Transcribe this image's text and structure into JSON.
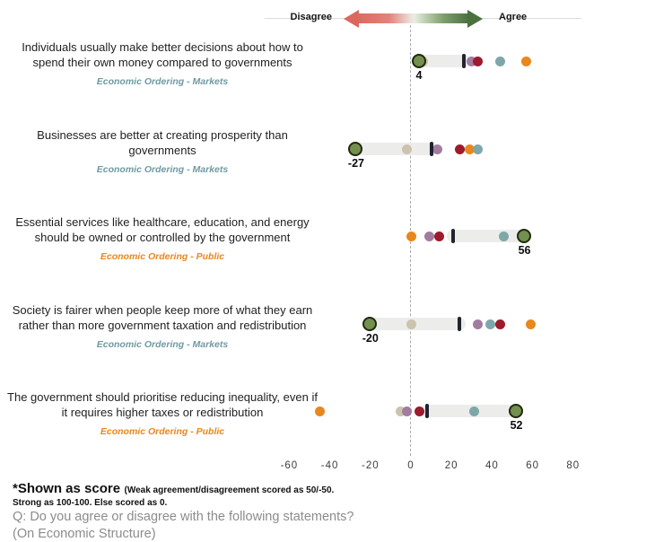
{
  "legend": {
    "disagree": "Disagree",
    "agree": "Agree"
  },
  "footnote": {
    "title": "*Shown as score",
    "note_line1": "(Weak agreement/disagreement scored as 50/-50.",
    "note_line2": "Strong as 100-100. Else scored as 0.",
    "question_line1": "Q: Do you agree or disagree with the following statements?",
    "question_line2": "(On Economic Structure)"
  },
  "palette": {
    "highlight_green": "#74904f",
    "highlight_green_border": "#20290f",
    "orange": "#e8871d",
    "teal": "#7ea7a9",
    "dark_red": "#9c1b2c",
    "purple": "#a17ca0",
    "tan": "#ccc3ae",
    "bar": "#ececea",
    "tick": "#20242e",
    "category_markets": "#6f9aa3",
    "category_public": "#e8871d",
    "arrow_red": "#dc675f",
    "arrow_green": "#4b7140"
  },
  "chart_data": {
    "type": "scatter",
    "title": "",
    "x_axis": {
      "ticks": [
        -60,
        -40,
        -20,
        0,
        20,
        40,
        60,
        80
      ],
      "range": [
        -73,
        83
      ],
      "zero_reference_line": true
    },
    "marker_legend": {
      "left": "Disagree",
      "right": "Agree"
    },
    "rows": [
      {
        "statement": "Individuals usually make better decisions about how to spend their own money compared to governments",
        "category": "Economic Ordering - Markets",
        "category_key": "category_markets",
        "highlight": {
          "color_key": "highlight_green",
          "value": 4,
          "label": "4"
        },
        "reference_tick": 26,
        "bar": [
          4,
          26
        ],
        "dots": [
          {
            "color_key": "tan",
            "value": 6
          },
          {
            "color_key": "purple",
            "value": 30
          },
          {
            "color_key": "dark_red",
            "value": 33
          },
          {
            "color_key": "teal",
            "value": 44
          },
          {
            "color_key": "orange",
            "value": 57
          }
        ]
      },
      {
        "statement": "Businesses are better at creating prosperity than governments",
        "category": "Economic Ordering - Markets",
        "category_key": "category_markets",
        "highlight": {
          "color_key": "highlight_green",
          "value": -27,
          "label": "-27"
        },
        "reference_tick": 10,
        "bar": [
          -27,
          10
        ],
        "dots": [
          {
            "color_key": "tan",
            "value": -2
          },
          {
            "color_key": "purple",
            "value": 13
          },
          {
            "color_key": "dark_red",
            "value": 24
          },
          {
            "color_key": "orange",
            "value": 29
          },
          {
            "color_key": "teal",
            "value": 33
          }
        ]
      },
      {
        "statement": "Essential services like healthcare, education, and energy should be owned or controlled by the government",
        "category": "Economic Ordering - Public",
        "category_key": "category_public",
        "highlight": {
          "color_key": "highlight_green",
          "value": 56,
          "label": "56"
        },
        "reference_tick": 21,
        "bar": [
          21,
          56
        ],
        "dots": [
          {
            "color_key": "orange",
            "value": 0
          },
          {
            "color_key": "purple",
            "value": 9
          },
          {
            "color_key": "dark_red",
            "value": 14
          },
          {
            "color_key": "teal",
            "value": 46
          }
        ]
      },
      {
        "statement": "Society is fairer when people keep more of what they earn rather than more government taxation and redistribution",
        "category": "Economic Ordering - Markets",
        "category_key": "category_markets",
        "highlight": {
          "color_key": "highlight_green",
          "value": -20,
          "label": "-20"
        },
        "reference_tick": 24,
        "bar": [
          -20,
          24
        ],
        "dots": [
          {
            "color_key": "tan",
            "value": 0
          },
          {
            "color_key": "purple",
            "value": 33
          },
          {
            "color_key": "teal",
            "value": 39
          },
          {
            "color_key": "dark_red",
            "value": 44
          },
          {
            "color_key": "orange",
            "value": 59
          }
        ]
      },
      {
        "statement": "The government should prioritise reducing inequality, even if it requires higher taxes or redistribution",
        "category": "Economic Ordering - Public",
        "category_key": "category_public",
        "highlight": {
          "color_key": "highlight_green",
          "value": 52,
          "label": "52"
        },
        "reference_tick": 8,
        "bar": [
          8,
          52
        ],
        "dots": [
          {
            "color_key": "orange",
            "value": -45
          },
          {
            "color_key": "tan",
            "value": -5
          },
          {
            "color_key": "purple",
            "value": -2
          },
          {
            "color_key": "dark_red",
            "value": 4
          },
          {
            "color_key": "teal",
            "value": 31
          }
        ]
      }
    ]
  }
}
